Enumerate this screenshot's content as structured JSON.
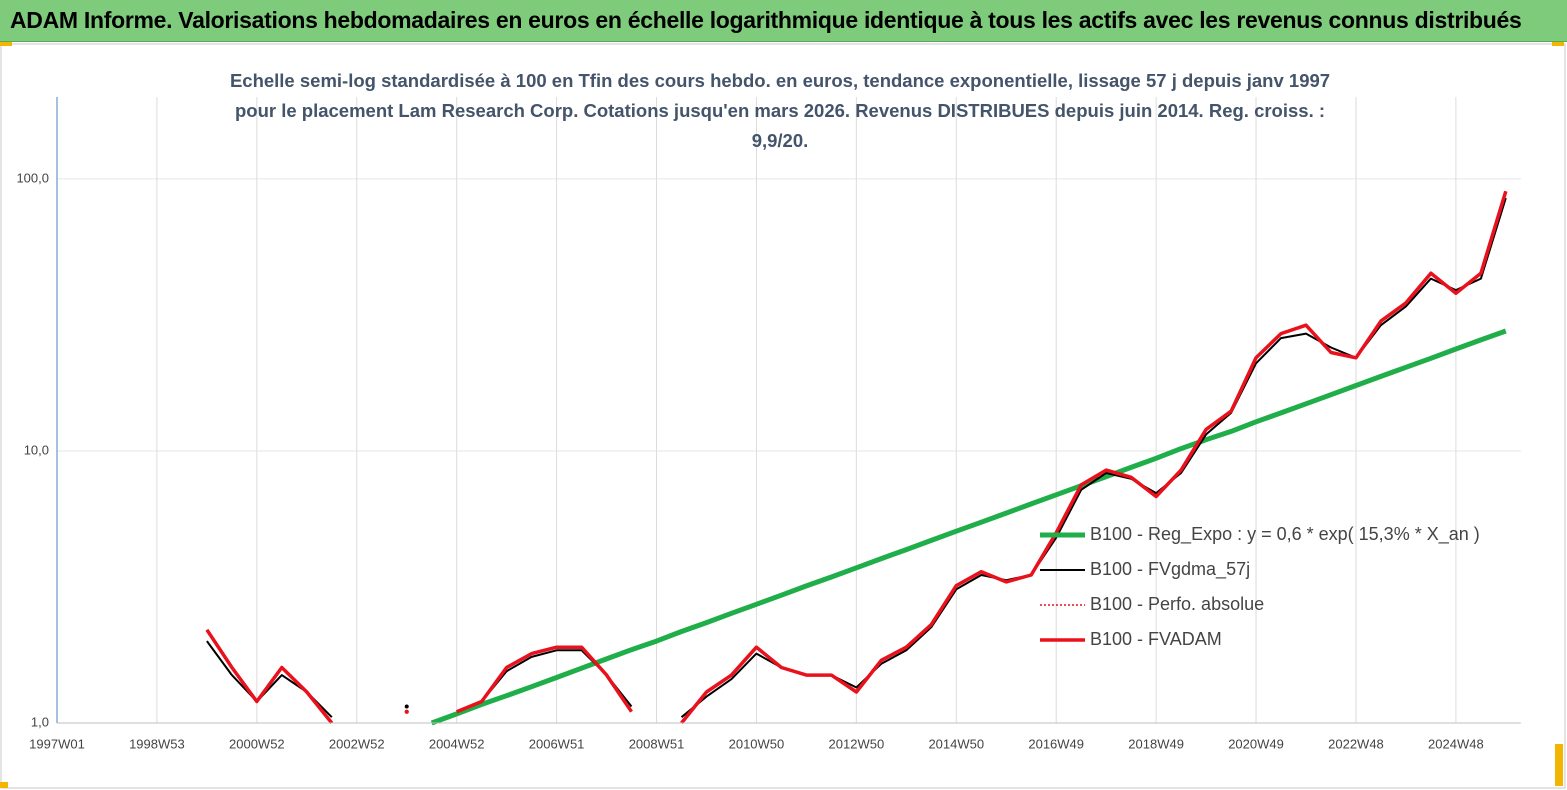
{
  "header": {
    "title": "ADAM Informe. Valorisations hebdomadaires en euros en échelle logarithmique identique à tous les actifs avec les revenus connus distribués"
  },
  "chart_data": {
    "type": "line",
    "title": "Echelle semi-log standardisée à 100 en Tfin des cours hebdo. en euros, tendance exponentielle, lissage 57 j depuis janv 1997 pour le placement Lam Research Corp. Cotations jusqu'en mars 2026. Revenus DISTRIBUES depuis juin 2014. Reg. croiss. : 9,9/20.",
    "categories": [
      "1997W01",
      null,
      null,
      null,
      "1998W53",
      null,
      null,
      null,
      "2000W52",
      null,
      null,
      null,
      "2002W52",
      null,
      null,
      null,
      "2004W52",
      null,
      null,
      null,
      "2006W51",
      null,
      null,
      null,
      "2008W51",
      null,
      null,
      null,
      "2010W50",
      null,
      null,
      null,
      "2012W50",
      null,
      null,
      null,
      "2014W50",
      null,
      null,
      null,
      "2016W49",
      null,
      null,
      null,
      "2018W49",
      null,
      null,
      null,
      "2020W49",
      null,
      null,
      null,
      "2022W48",
      null,
      null,
      null,
      "2024W48",
      null,
      null
    ],
    "y_scale": "log",
    "ylim": [
      1,
      200
    ],
    "yticks": [
      {
        "value": 1,
        "label": "1,0"
      },
      {
        "value": 10,
        "label": "10,0"
      },
      {
        "value": 100,
        "label": "100,0"
      }
    ],
    "grid": true,
    "legend_position": "right",
    "series": [
      {
        "name": "B100 - Reg_Expo : y = 0,6 * exp( 15,3% *  X_an )",
        "color": "#1fae4a",
        "style": "solid",
        "values": [
          null,
          null,
          null,
          null,
          null,
          null,
          null,
          null,
          null,
          null,
          null,
          null,
          null,
          null,
          null,
          1.0,
          1.08,
          1.17,
          1.26,
          1.36,
          1.47,
          1.59,
          1.72,
          1.86,
          2.0,
          2.17,
          2.34,
          2.53,
          2.73,
          2.95,
          3.19,
          3.44,
          3.72,
          4.02,
          4.34,
          4.69,
          5.07,
          5.47,
          5.91,
          6.39,
          6.9,
          7.45,
          8.05,
          8.7,
          9.4,
          10.2,
          11.0,
          11.8,
          12.8,
          13.8,
          14.9,
          16.1,
          17.4,
          18.8,
          20.3,
          21.9,
          23.7,
          25.6,
          27.6
        ]
      },
      {
        "name": "B100 - FVgdma_57j",
        "color": "#000000",
        "style": "solid",
        "values": [
          null,
          null,
          null,
          null,
          null,
          null,
          2.0,
          1.5,
          1.2,
          1.5,
          1.3,
          1.05,
          null,
          null,
          1.15,
          null,
          1.1,
          1.2,
          1.55,
          1.75,
          1.85,
          1.85,
          1.5,
          1.15,
          null,
          1.05,
          1.25,
          1.45,
          1.8,
          1.6,
          1.5,
          1.5,
          1.35,
          1.65,
          1.85,
          2.25,
          3.1,
          3.5,
          3.35,
          3.5,
          4.8,
          7.2,
          8.3,
          7.9,
          7.0,
          8.3,
          11.5,
          13.8,
          21,
          26,
          27,
          24,
          22,
          29,
          34,
          43,
          39,
          43,
          85
        ]
      },
      {
        "name": "B100 - Perfo. absolue",
        "color": "#e8111c",
        "style": "dotted",
        "values": [
          null,
          null,
          null,
          null,
          null,
          null,
          2.2,
          1.6,
          1.2,
          1.6,
          1.3,
          1.0,
          null,
          null,
          1.1,
          null,
          1.1,
          1.2,
          1.6,
          1.8,
          1.9,
          1.9,
          1.5,
          1.1,
          null,
          1.0,
          1.3,
          1.5,
          1.9,
          1.6,
          1.5,
          1.5,
          1.3,
          1.7,
          1.9,
          2.3,
          3.2,
          3.6,
          3.3,
          3.5,
          5.0,
          7.5,
          8.5,
          8.0,
          6.8,
          8.5,
          12,
          14,
          22,
          27,
          29,
          23,
          22,
          30,
          35,
          45,
          38,
          45,
          90
        ]
      },
      {
        "name": "B100 - FVADAM",
        "color": "#e8111c",
        "style": "solid",
        "values": [
          null,
          null,
          null,
          null,
          null,
          null,
          2.2,
          1.6,
          1.2,
          1.6,
          1.3,
          1.0,
          null,
          null,
          1.1,
          null,
          1.1,
          1.2,
          1.6,
          1.8,
          1.9,
          1.9,
          1.5,
          1.1,
          null,
          1.0,
          1.3,
          1.5,
          1.9,
          1.6,
          1.5,
          1.5,
          1.3,
          1.7,
          1.9,
          2.3,
          3.2,
          3.6,
          3.3,
          3.5,
          5.0,
          7.5,
          8.5,
          8.0,
          6.8,
          8.5,
          12,
          14,
          22,
          27,
          29,
          23,
          22,
          30,
          35,
          45,
          38,
          45,
          90
        ]
      }
    ]
  }
}
